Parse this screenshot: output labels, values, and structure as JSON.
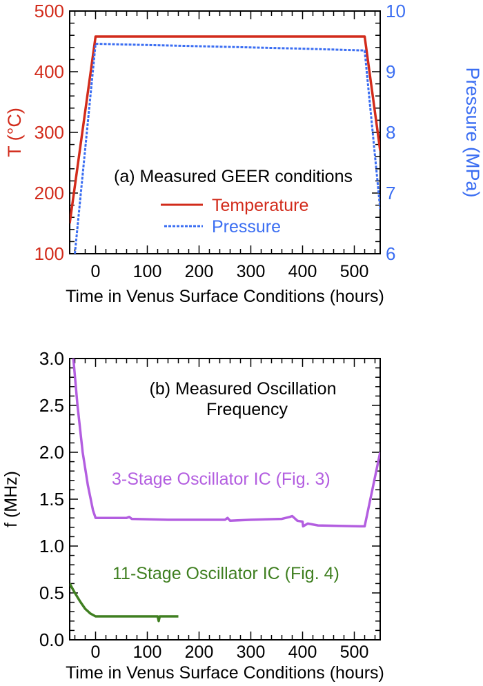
{
  "chart_data": [
    {
      "type": "line",
      "annotation": "(a) Measured GEER conditions",
      "xlabel": "Time in Venus Surface Conditions (hours)",
      "ylabel": "T (°C)",
      "y2label": "Pressure (MPa)",
      "xlim": [
        -50,
        550
      ],
      "ylim": [
        100,
        500
      ],
      "y2lim": [
        6,
        10
      ],
      "xticks": [
        "0",
        "100",
        "200",
        "300",
        "400",
        "500"
      ],
      "yticks": [
        "100",
        "200",
        "300",
        "400",
        "500"
      ],
      "y2ticks": [
        "6",
        "7",
        "8",
        "9",
        "10"
      ],
      "legend": "center",
      "series": [
        {
          "name": "Temperature",
          "axis": "left",
          "color": "#d22b1b",
          "style": "solid",
          "x": [
            -50,
            0,
            100,
            200,
            300,
            400,
            520,
            550
          ],
          "y": [
            150,
            458,
            458,
            458,
            458,
            458,
            458,
            270
          ]
        },
        {
          "name": "Pressure",
          "axis": "right",
          "color": "#3b6ef2",
          "style": "dashed",
          "x": [
            -40,
            0,
            100,
            200,
            300,
            400,
            520,
            550
          ],
          "y": [
            6.0,
            9.46,
            9.44,
            9.42,
            9.4,
            9.38,
            9.35,
            6.74
          ]
        }
      ]
    },
    {
      "type": "line",
      "annotation": [
        "(b) Measured Oscillation",
        "Frequency"
      ],
      "xlabel": "Time in Venus Surface Conditions (hours)",
      "ylabel": "f (MHz)",
      "xlim": [
        -50,
        550
      ],
      "ylim": [
        0,
        3
      ],
      "xticks": [
        "0",
        "100",
        "200",
        "300",
        "400",
        "500"
      ],
      "yticks": [
        "0.0",
        "0.5",
        "1.0",
        "1.5",
        "2.0",
        "2.5",
        "3.0"
      ],
      "series": [
        {
          "name": "3-Stage Oscillator IC (Fig. 3)",
          "color": "#b35ee0",
          "x": [
            -43,
            -35,
            -25,
            -15,
            -5,
            0,
            60,
            65,
            70,
            140,
            250,
            255,
            260,
            300,
            360,
            375,
            380,
            390,
            400,
            401,
            410,
            430,
            510,
            520,
            550
          ],
          "y": [
            3.0,
            2.5,
            2.0,
            1.65,
            1.38,
            1.3,
            1.3,
            1.31,
            1.29,
            1.28,
            1.28,
            1.3,
            1.27,
            1.28,
            1.29,
            1.31,
            1.32,
            1.27,
            1.26,
            1.21,
            1.24,
            1.22,
            1.21,
            1.21,
            2.0
          ]
        },
        {
          "name": "11-Stage Oscillator IC (Fig. 4)",
          "color": "#3f7f20",
          "x": [
            -50,
            -40,
            -30,
            -20,
            -10,
            0,
            65,
            120,
            122,
            124,
            160
          ],
          "y": [
            0.6,
            0.5,
            0.41,
            0.33,
            0.28,
            0.25,
            0.25,
            0.25,
            0.2,
            0.25,
            0.25
          ]
        }
      ]
    }
  ]
}
